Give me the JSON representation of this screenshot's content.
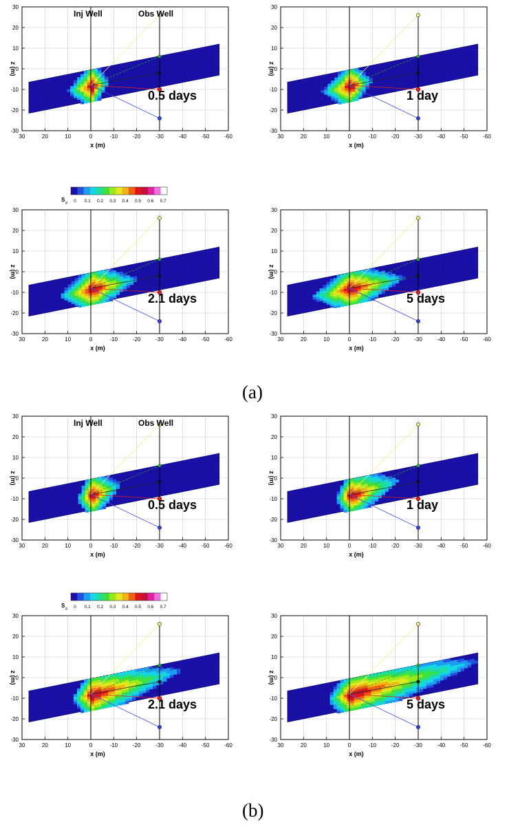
{
  "captions": [
    "(a)",
    "(b)"
  ],
  "colorbar": {
    "label": "S",
    "label_sub": "g",
    "ticks": [
      "0",
      "0.1",
      "0.2",
      "0.3",
      "0.4",
      "0.5",
      "0.6",
      "0.7"
    ],
    "colors": [
      "#1a10a8",
      "#2450e0",
      "#1e9cf0",
      "#16d6e6",
      "#1edc9c",
      "#3ce040",
      "#9ae81e",
      "#e0e81e",
      "#f0b414",
      "#f06014",
      "#e01414",
      "#c0103c",
      "#e0209c",
      "#f070e0",
      "#ffffff"
    ]
  },
  "labels": {
    "inj_well": "Inj Well",
    "obs_well": "Obs Well"
  },
  "chart_data": [
    {
      "type": "heatmap",
      "group": "a",
      "time_label": "0.5 days",
      "xlabel": "x (m)",
      "ylabel": "z (m)",
      "xlim": [
        30,
        -60
      ],
      "ylim": [
        -30,
        30
      ],
      "x_ticks": [
        "30",
        "20",
        "10",
        "0",
        "-10",
        "-20",
        "-30",
        "-40",
        "-50",
        "-60"
      ],
      "y_ticks": [
        "30",
        "20",
        "10",
        "0",
        "-10",
        "-20",
        "-30"
      ],
      "grid": true,
      "plume": {
        "ux": 12,
        "dx": -8,
        "w": 9,
        "spread": 0.1
      }
    },
    {
      "type": "heatmap",
      "group": "a",
      "time_label": "1 day",
      "xlabel": "x (m)",
      "ylabel": "z (m)",
      "xlim": [
        30,
        -60
      ],
      "ylim": [
        -30,
        30
      ],
      "x_ticks": [
        "30",
        "20",
        "10",
        "0",
        "-10",
        "-20",
        "-30",
        "-40",
        "-50",
        "-60"
      ],
      "y_ticks": [
        "30",
        "20",
        "10",
        "0",
        "-10",
        "-20",
        "-30"
      ],
      "grid": true,
      "plume": {
        "ux": 14,
        "dx": -10,
        "w": 9,
        "spread": 0.1
      }
    },
    {
      "type": "heatmap",
      "group": "a",
      "time_label": "2.1 days",
      "xlabel": "x (m)",
      "ylabel": "z (m)",
      "xlim": [
        30,
        -60
      ],
      "ylim": [
        -30,
        30
      ],
      "x_ticks": [
        "30",
        "20",
        "10",
        "0",
        "-10",
        "-20",
        "-30",
        "-40",
        "-50",
        "-60"
      ],
      "y_ticks": [
        "30",
        "20",
        "10",
        "0",
        "-10",
        "-20",
        "-30"
      ],
      "grid": true,
      "plume": {
        "ux": 16,
        "dx": -22,
        "w": 9,
        "spread": 0.1
      }
    },
    {
      "type": "heatmap",
      "group": "a",
      "time_label": "5 days",
      "xlabel": "x (m)",
      "ylabel": "z (m)",
      "xlim": [
        30,
        -60
      ],
      "ylim": [
        -30,
        30
      ],
      "x_ticks": [
        "30",
        "20",
        "10",
        "0",
        "-10",
        "-20",
        "-30",
        "-40",
        "-50",
        "-60"
      ],
      "y_ticks": [
        "30",
        "20",
        "10",
        "0",
        "-10",
        "-20",
        "-30"
      ],
      "grid": true,
      "plume": {
        "ux": 19,
        "dx": -26,
        "w": 9,
        "spread": 0.1
      }
    },
    {
      "type": "heatmap",
      "group": "b",
      "time_label": "0.5 days",
      "xlabel": "x (m)",
      "ylabel": "z (m)",
      "xlim": [
        30,
        -60
      ],
      "ylim": [
        -30,
        30
      ],
      "x_ticks": [
        "30",
        "20",
        "10",
        "0",
        "-10",
        "-20",
        "-30",
        "-40",
        "-50",
        "-60"
      ],
      "y_ticks": [
        "30",
        "20",
        "10",
        "0",
        "-10",
        "-20",
        "-30"
      ],
      "grid": true,
      "plume": {
        "ux": 7,
        "dx": -13,
        "w": 8,
        "spread": 0.35
      }
    },
    {
      "type": "heatmap",
      "group": "b",
      "time_label": "1 day",
      "xlabel": "x (m)",
      "ylabel": "z (m)",
      "xlim": [
        30,
        -60
      ],
      "ylim": [
        -30,
        30
      ],
      "x_ticks": [
        "30",
        "20",
        "10",
        "0",
        "-10",
        "-20",
        "-30",
        "-40",
        "-50",
        "-60"
      ],
      "y_ticks": [
        "30",
        "20",
        "10",
        "0",
        "-10",
        "-20",
        "-30"
      ],
      "grid": true,
      "plume": {
        "ux": 7,
        "dx": -22,
        "w": 8,
        "spread": 0.4
      }
    },
    {
      "type": "heatmap",
      "group": "b",
      "time_label": "2.1 days",
      "xlabel": "x (m)",
      "ylabel": "z (m)",
      "xlim": [
        30,
        -60
      ],
      "ylim": [
        -30,
        30
      ],
      "x_ticks": [
        "30",
        "20",
        "10",
        "0",
        "-10",
        "-20",
        "-30",
        "-40",
        "-50",
        "-60"
      ],
      "y_ticks": [
        "30",
        "20",
        "10",
        "0",
        "-10",
        "-20",
        "-30"
      ],
      "grid": true,
      "plume": {
        "ux": 9,
        "dx": -40,
        "w": 8,
        "spread": 0.5
      }
    },
    {
      "type": "heatmap",
      "group": "b",
      "time_label": "5 days",
      "xlabel": "x (m)",
      "ylabel": "z (m)",
      "xlim": [
        30,
        -60
      ],
      "ylim": [
        -30,
        30
      ],
      "x_ticks": [
        "30",
        "20",
        "10",
        "0",
        "-10",
        "-20",
        "-30",
        "-40",
        "-50",
        "-60"
      ],
      "y_ticks": [
        "30",
        "20",
        "10",
        "0",
        "-10",
        "-20",
        "-30"
      ],
      "grid": true,
      "plume": {
        "ux": 10,
        "dx": -56,
        "w": 8,
        "spread": 0.6
      }
    }
  ]
}
